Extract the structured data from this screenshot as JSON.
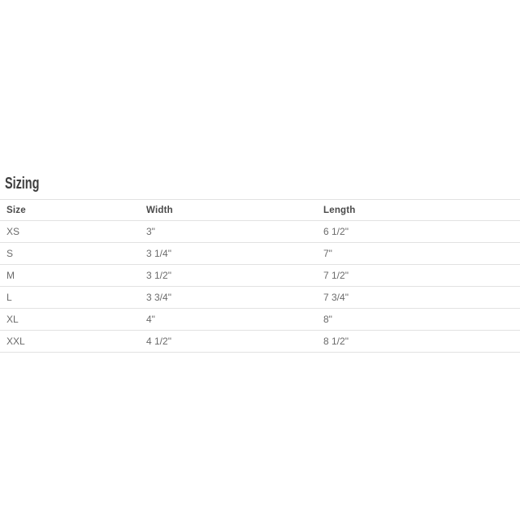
{
  "section": {
    "title": "Sizing"
  },
  "table": {
    "columns": [
      {
        "label": "Size"
      },
      {
        "label": "Width"
      },
      {
        "label": "Length"
      }
    ],
    "rows": [
      {
        "size": "XS",
        "width": "3\"",
        "length": "6 1/2\""
      },
      {
        "size": "S",
        "width": "3 1/4\"",
        "length": "7\""
      },
      {
        "size": "M",
        "width": "3 1/2\"",
        "length": "7 1/2\""
      },
      {
        "size": "L",
        "width": "3 3/4\"",
        "length": "7 3/4\""
      },
      {
        "size": "XL",
        "width": "4\"",
        "length": "8\""
      },
      {
        "size": "XXL",
        "width": "4 1/2\"",
        "length": "8 1/2\""
      }
    ]
  },
  "colors": {
    "background": "#ffffff",
    "heading_text": "#3e3e3e",
    "header_text": "#4a4a4a",
    "cell_text": "#6b6b6b",
    "border": "#e2e2e2"
  }
}
